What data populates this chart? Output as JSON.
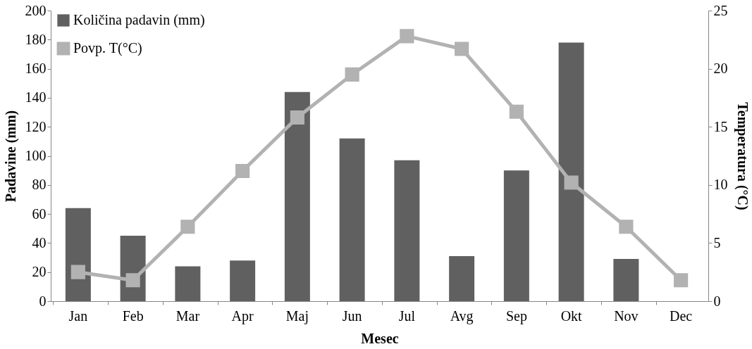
{
  "chart_data": {
    "type": "bar",
    "categories": [
      "Jan",
      "Feb",
      "Mar",
      "Apr",
      "Maj",
      "Jun",
      "Jul",
      "Avg",
      "Sep",
      "Okt",
      "Nov",
      "Dec"
    ],
    "series": [
      {
        "name": "Količina padavin (mm)",
        "color": "#606060",
        "values": [
          64,
          45,
          24,
          28,
          144,
          112,
          97,
          31,
          90,
          178,
          29,
          0
        ]
      },
      {
        "name": "Povp. T(°C)",
        "type": "line",
        "axis": "y2",
        "color": "#b2b2b2",
        "marker": "square",
        "values": [
          2.5,
          1.8,
          6.4,
          11.2,
          15.8,
          19.5,
          22.8,
          21.7,
          16.3,
          10.2,
          6.4,
          1.8
        ]
      }
    ],
    "xlabel": "Mesec",
    "ylabel": "Padavine (mm)",
    "y2label": "Temperatura (°C)",
    "ylim": [
      0,
      200
    ],
    "yticks": [
      0,
      20,
      40,
      60,
      80,
      100,
      120,
      140,
      160,
      180,
      200
    ],
    "y2lim": [
      0,
      25
    ],
    "y2ticks": [
      0,
      5,
      10,
      15,
      20,
      25
    ],
    "legend": "top left",
    "grid": false
  }
}
